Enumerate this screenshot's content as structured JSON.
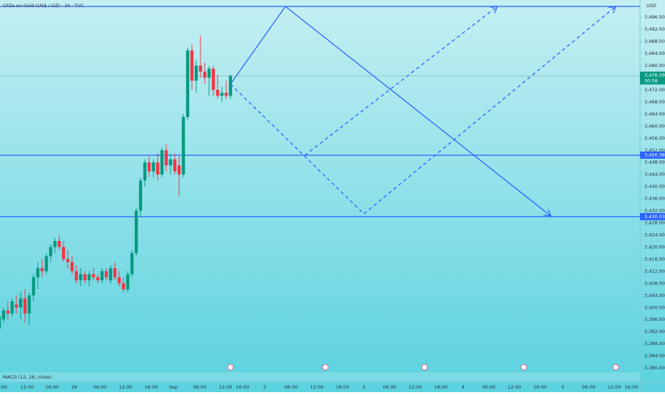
{
  "chart_data": {
    "type": "candlestick",
    "title": "CFDs on Gold (US$ / OZ) · 1h · TVC",
    "currency": "USD",
    "indicator": "MACD (12, 26, close)",
    "up_color": "#089981",
    "down_color": "#f23645",
    "open": [
      3393,
      3396,
      3399,
      3398,
      3401,
      3400,
      3403,
      3398,
      3404,
      3410,
      3413,
      3412,
      3417,
      3420,
      3422,
      3420,
      3416,
      3415,
      3412,
      3409,
      3411,
      3409,
      3411,
      3410,
      3409,
      3412,
      3409,
      3413,
      3410,
      3408,
      3406,
      3411,
      3418,
      3432,
      3442,
      3448,
      3445,
      3448,
      3444,
      3452,
      3447,
      3449,
      3447,
      3444,
      3463,
      3485,
      3475,
      3480,
      3478,
      3476,
      3479,
      3472,
      3470,
      3471,
      3470
    ],
    "high": [
      3398,
      3400,
      3402,
      3403,
      3404,
      3405,
      3406,
      3405,
      3411,
      3415,
      3416,
      3418,
      3421,
      3423,
      3424,
      3422,
      3419,
      3417,
      3414,
      3413,
      3412,
      3412,
      3413,
      3411,
      3413,
      3413,
      3414,
      3415,
      3412,
      3410,
      3412,
      3419,
      3433,
      3443,
      3449,
      3450,
      3449,
      3451,
      3453,
      3454,
      3451,
      3451,
      3450,
      3464,
      3486,
      3487,
      3482,
      3490,
      3481,
      3480,
      3480,
      3477,
      3473,
      3475,
      3477
    ],
    "low": [
      3389,
      3395,
      3396,
      3397,
      3398,
      3396,
      3395,
      3394,
      3402,
      3406,
      3410,
      3411,
      3415,
      3418,
      3419,
      3415,
      3413,
      3411,
      3408,
      3407,
      3408,
      3407,
      3409,
      3408,
      3408,
      3409,
      3408,
      3409,
      3407,
      3405,
      3405,
      3410,
      3417,
      3430,
      3440,
      3443,
      3443,
      3442,
      3443,
      3445,
      3444,
      3444,
      3437,
      3443,
      3462,
      3472,
      3471,
      3476,
      3474,
      3470,
      3470,
      3469,
      3468,
      3469,
      3469
    ],
    "close": [
      3397,
      3399,
      3398,
      3402,
      3400,
      3403,
      3398,
      3404,
      3410,
      3413,
      3412,
      3417,
      3420,
      3422,
      3420,
      3416,
      3415,
      3412,
      3409,
      3411,
      3409,
      3411,
      3410,
      3409,
      3412,
      3410,
      3413,
      3410,
      3408,
      3406,
      3411,
      3418,
      3432,
      3442,
      3448,
      3445,
      3448,
      3444,
      3452,
      3447,
      3449,
      3445,
      3444,
      3463,
      3485,
      3475,
      3480,
      3478,
      3476,
      3479,
      3472,
      3470,
      3471,
      3470,
      3476.59
    ],
    "ylim": [
      3378.6,
      3501.7
    ],
    "yticks": [
      {
        "value": 3380,
        "label": "3,380.000"
      },
      {
        "value": 3384,
        "label": "3,384.000"
      },
      {
        "value": 3388,
        "label": "3,388.000"
      },
      {
        "value": 3392,
        "label": "3,392.000"
      },
      {
        "value": 3396,
        "label": "3,396.000"
      },
      {
        "value": 3400,
        "label": "3,400.000"
      },
      {
        "value": 3404,
        "label": "3,404.000"
      },
      {
        "value": 3408,
        "label": "3,408.000"
      },
      {
        "value": 3412,
        "label": "3,412.000"
      },
      {
        "value": 3416,
        "label": "3,416.000"
      },
      {
        "value": 3420,
        "label": "3,420.000"
      },
      {
        "value": 3424,
        "label": "3,424.000"
      },
      {
        "value": 3428,
        "label": "3,428.000"
      },
      {
        "value": 3432,
        "label": "3,432.000"
      },
      {
        "value": 3436,
        "label": "3,436.000"
      },
      {
        "value": 3440,
        "label": "3,440.000"
      },
      {
        "value": 3444,
        "label": "3,444.000"
      },
      {
        "value": 3448,
        "label": "3,448.000"
      },
      {
        "value": 3452,
        "label": "3,452.000"
      },
      {
        "value": 3456,
        "label": "3,456.000"
      },
      {
        "value": 3460,
        "label": "3,460.000"
      },
      {
        "value": 3464,
        "label": "3,464.000"
      },
      {
        "value": 3468,
        "label": "3,468.000"
      },
      {
        "value": 3472,
        "label": "3,472.000"
      },
      {
        "value": 3476,
        "label": "3,476.000"
      },
      {
        "value": 3480,
        "label": "3,480.000"
      },
      {
        "value": 3484,
        "label": "3,484.000"
      },
      {
        "value": 3488,
        "label": "3,488.000"
      },
      {
        "value": 3492,
        "label": "3,492.000"
      },
      {
        "value": 3496,
        "label": "3,496.000"
      }
    ],
    "levels": [
      {
        "value": 3450.383,
        "label": "3,450.383"
      },
      {
        "value": 3430.033,
        "label": "3,430.033"
      }
    ],
    "last_price": {
      "value": 3476.59,
      "label": "3,476.590"
    },
    "countdown": "30:58",
    "time_labels": [
      ":00",
      "12:00",
      "18:00",
      "29",
      "06:00",
      "12:00",
      "18:00",
      "Sep",
      "06:00",
      "12:00",
      "16:00",
      "2",
      "06:00",
      "12:00",
      "18:00",
      "3",
      "06:00",
      "12:00",
      "18:00",
      "4",
      "06:00",
      "12:00",
      "18:00",
      "5",
      "06:00",
      "12:00",
      "16:00"
    ]
  }
}
